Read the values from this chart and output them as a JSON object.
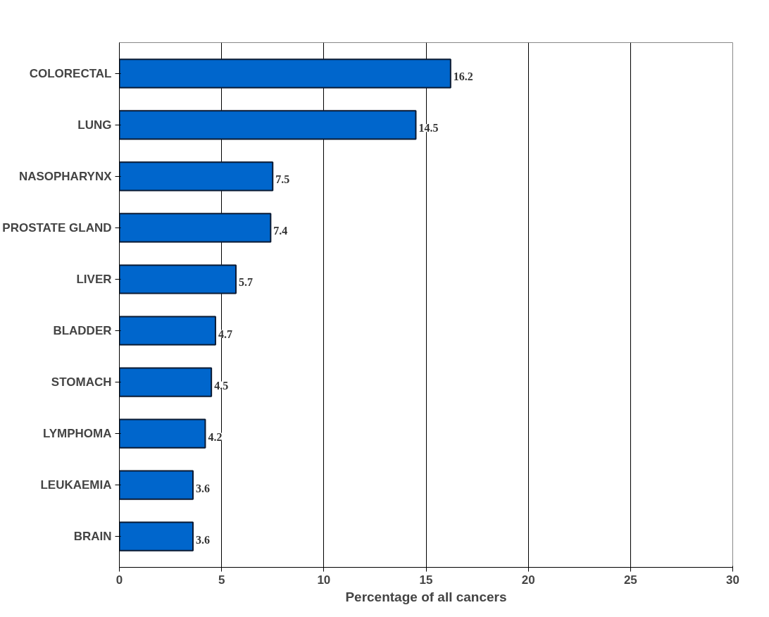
{
  "chart_data": {
    "type": "bar",
    "orientation": "horizontal",
    "xlabel": "Percentage of all cancers",
    "categories": [
      "COLORECTAL",
      "LUNG",
      "NASOPHARYNX",
      "PROSTATE GLAND",
      "LIVER",
      "BLADDER",
      "STOMACH",
      "LYMPHOMA",
      "LEUKAEMIA",
      "BRAIN"
    ],
    "values": [
      16.2,
      14.5,
      7.5,
      7.4,
      5.7,
      4.7,
      4.5,
      4.2,
      3.6,
      3.6
    ],
    "color": "#0066cc",
    "xlim": [
      0,
      30
    ],
    "xticks": [
      0,
      5,
      10,
      15,
      20,
      25,
      30
    ],
    "grid": "x",
    "data_labels": true
  }
}
